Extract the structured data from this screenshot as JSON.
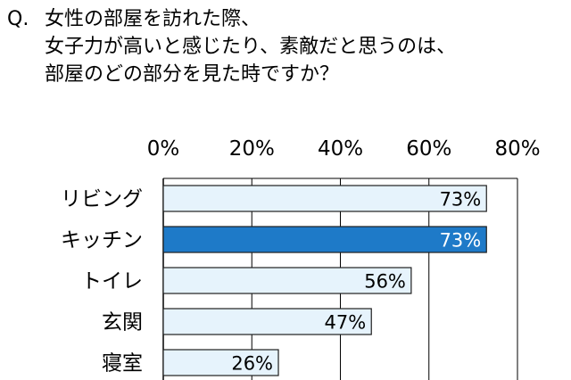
{
  "question": {
    "prefix": "Q.",
    "lines": [
      "女性の部屋を訪れた際、",
      "女子力が高いと感じたり、素敵だと思うのは、",
      "部屋のどの部分を見た時ですか？"
    ]
  },
  "chart_data": {
    "type": "bar",
    "orientation": "horizontal",
    "categories": [
      "リビング",
      "キッチン",
      "トイレ",
      "玄関",
      "寝室"
    ],
    "values": [
      73,
      73,
      56,
      47,
      26
    ],
    "value_labels": [
      "73%",
      "73%",
      "56%",
      "47%",
      "26%"
    ],
    "highlight_index": 1,
    "xlim": [
      0,
      80
    ],
    "xticks": [
      "0%",
      "20%",
      "40%",
      "60%",
      "80%"
    ],
    "axis_position": "top",
    "grid": true,
    "colors": {
      "bar_fill": "#e6f3fc",
      "bar_stroke": "#1f1f1f",
      "highlight_fill": "#1e7ac8",
      "highlight_text": "#ffffff",
      "text": "#000000",
      "grid": "#000000"
    }
  }
}
